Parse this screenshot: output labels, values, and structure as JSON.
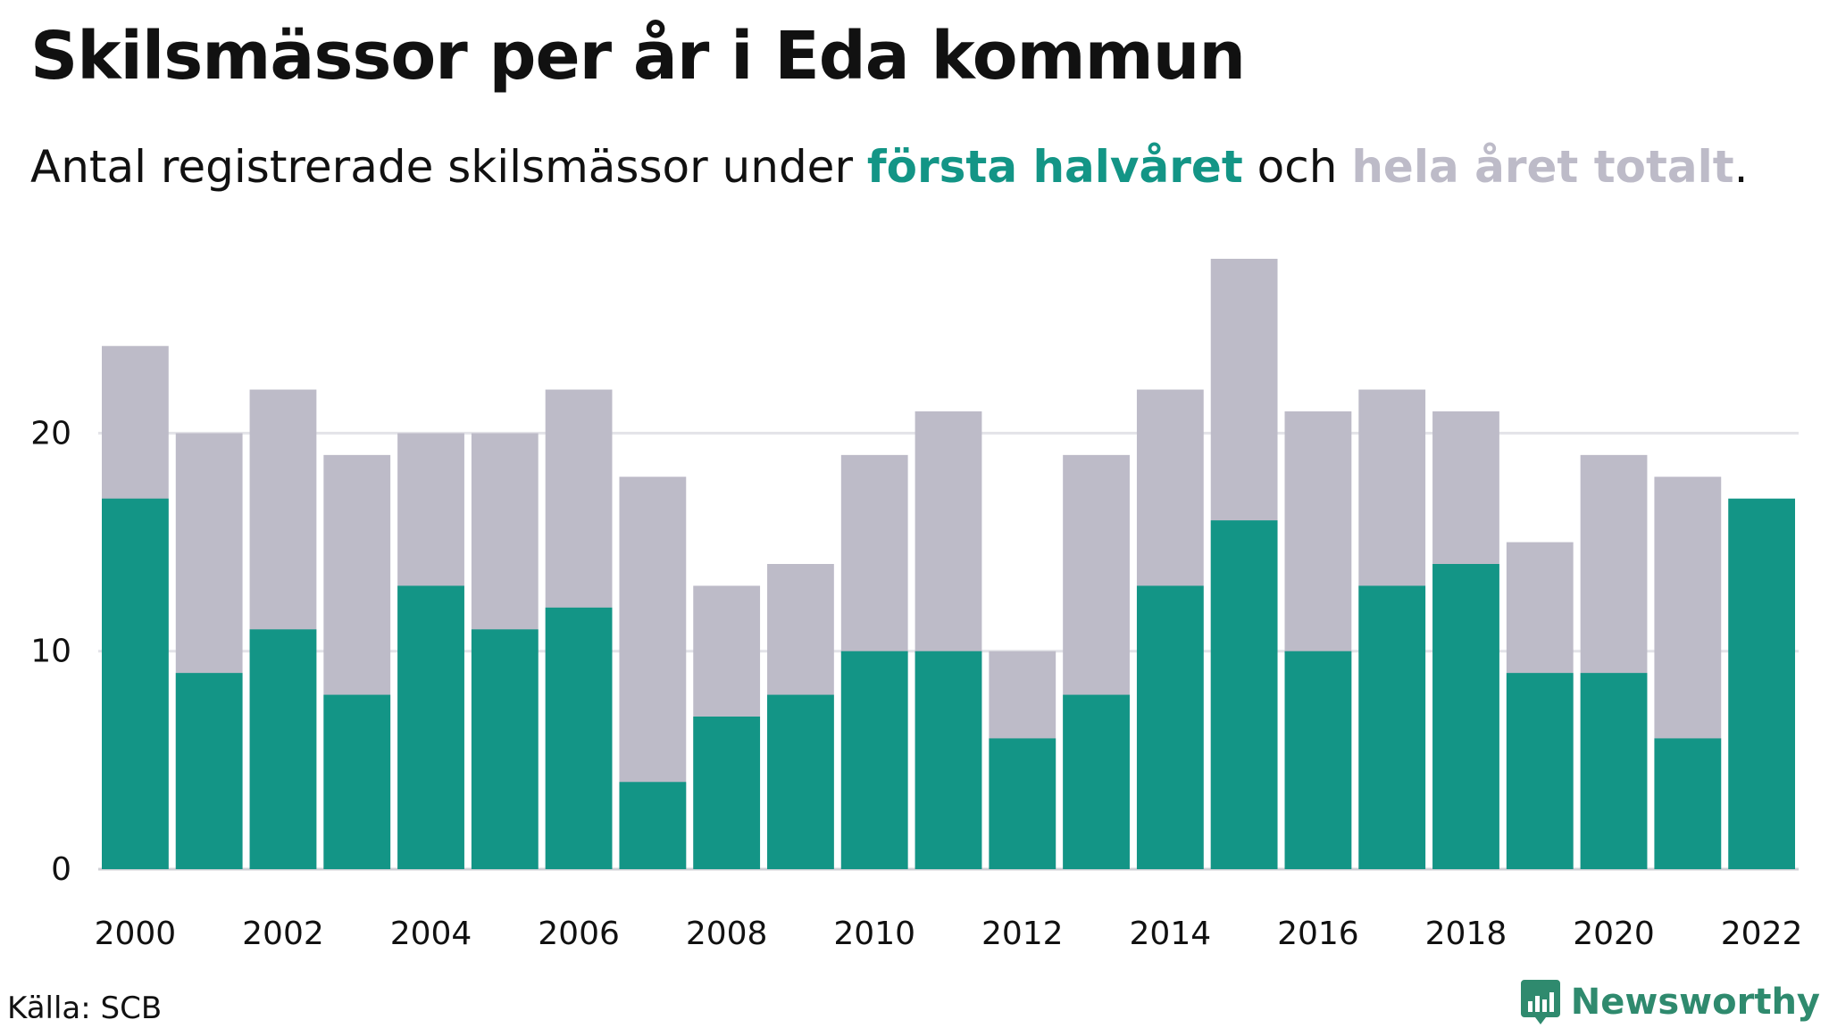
{
  "title": "Skilsmässor per år i Eda kommun",
  "subtitle": {
    "part1": "Antal registrerade skilsmässor under ",
    "series1": "första halvåret",
    "part2": " och ",
    "series2": "hela året totalt",
    "part3": "."
  },
  "colors": {
    "first_half": "#139586",
    "full_year": "#bdbbc8",
    "gridline": "#e3e3e8",
    "brand": "#2f8a6e"
  },
  "chart_data": {
    "type": "bar",
    "title": "Skilsmässor per år i Eda kommun",
    "xlabel": "",
    "ylabel": "",
    "ylim": [
      0,
      28
    ],
    "yticks": [
      0,
      10,
      20
    ],
    "categories": [
      2000,
      2001,
      2002,
      2003,
      2004,
      2005,
      2006,
      2007,
      2008,
      2009,
      2010,
      2011,
      2012,
      2013,
      2014,
      2015,
      2016,
      2017,
      2018,
      2019,
      2020,
      2021,
      2022
    ],
    "xtick_labels": [
      "2000",
      "2002",
      "2004",
      "2006",
      "2008",
      "2010",
      "2012",
      "2014",
      "2016",
      "2018",
      "2020",
      "2022"
    ],
    "grid": true,
    "legend": "in subtitle",
    "series": [
      {
        "name": "hela året totalt",
        "values": [
          24,
          20,
          22,
          19,
          20,
          20,
          22,
          18,
          13,
          14,
          19,
          21,
          10,
          19,
          22,
          28,
          21,
          22,
          21,
          15,
          19,
          18,
          null
        ]
      },
      {
        "name": "första halvåret",
        "values": [
          17,
          9,
          11,
          8,
          13,
          11,
          12,
          4,
          7,
          8,
          10,
          10,
          6,
          8,
          13,
          16,
          10,
          13,
          14,
          9,
          9,
          6,
          17
        ]
      }
    ]
  },
  "source": "Källa: SCB",
  "brand": {
    "name": "Newsworthy",
    "icon": "newsworthy-logo-icon"
  }
}
